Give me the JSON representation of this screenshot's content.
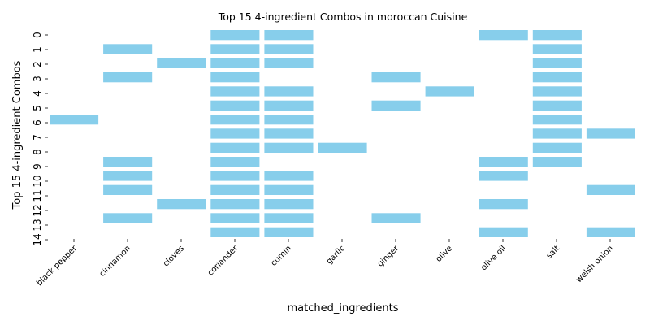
{
  "chart_data": {
    "type": "heatmap",
    "title": "Top 15 4-ingredient Combos in moroccan Cuisine",
    "xlabel": "matched_ingredients",
    "ylabel": "Top 15 4-ingredient Combos",
    "categories": [
      "black pepper",
      "cinnamon",
      "cloves",
      "coriander",
      "cumin",
      "garlic",
      "ginger",
      "olive",
      "olive oil",
      "salt",
      "welsh onion"
    ],
    "y_tick_labels": [
      "0",
      "1",
      "2",
      "3",
      "4",
      "5",
      "6",
      "7",
      "8",
      "9",
      "10",
      "11",
      "12",
      "13",
      "14"
    ],
    "rows": [
      [
        "coriander",
        "cumin",
        "olive oil",
        "salt"
      ],
      [
        "cinnamon",
        "coriander",
        "cumin",
        "salt"
      ],
      [
        "cloves",
        "coriander",
        "cumin",
        "salt"
      ],
      [
        "cinnamon",
        "coriander",
        "ginger",
        "salt"
      ],
      [
        "coriander",
        "cumin",
        "olive",
        "salt"
      ],
      [
        "coriander",
        "cumin",
        "ginger",
        "salt"
      ],
      [
        "black pepper",
        "coriander",
        "cumin",
        "salt"
      ],
      [
        "coriander",
        "cumin",
        "salt",
        "welsh onion"
      ],
      [
        "coriander",
        "cumin",
        "garlic",
        "salt"
      ],
      [
        "cinnamon",
        "coriander",
        "olive oil",
        "salt"
      ],
      [
        "cinnamon",
        "coriander",
        "cumin",
        "olive oil"
      ],
      [
        "cinnamon",
        "coriander",
        "cumin",
        "welsh onion"
      ],
      [
        "cloves",
        "coriander",
        "cumin",
        "olive oil"
      ],
      [
        "cinnamon",
        "coriander",
        "cumin",
        "ginger"
      ],
      [
        "coriander",
        "cumin",
        "olive oil",
        "welsh onion"
      ]
    ],
    "cell_color": "#87ceeb",
    "grid": false,
    "legend": "none"
  }
}
